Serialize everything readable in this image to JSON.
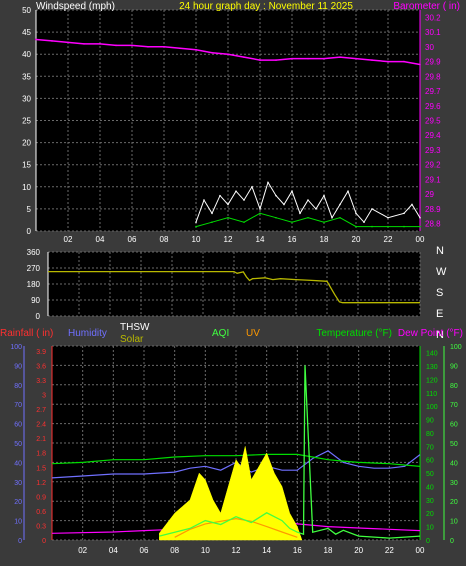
{
  "colors": {
    "bg": "#3a3a3a",
    "plot": "#000000",
    "grid": "#6a6a6a",
    "white": "#ffffff",
    "yellow": "#ffff00",
    "magenta": "#ff00ff",
    "olive": "#b8b800",
    "red": "#ff3030",
    "blue": "#7070ff",
    "green": "#00dd00",
    "orange": "#ff9900",
    "aqi": "#40ff40",
    "gray": "#b0b0b0"
  },
  "chart_data": [
    {
      "type": "line",
      "title": "24 hour graph day : November 11 2025",
      "left_axis_label": "Windspeed (mph)",
      "right_axis_label": "Barometer ( in)",
      "x_ticks": [
        "02",
        "04",
        "06",
        "08",
        "10",
        "12",
        "14",
        "16",
        "18",
        "20",
        "22",
        "00"
      ],
      "x_range": [
        0,
        24
      ],
      "left_ticks": [
        "0",
        "5",
        "10",
        "15",
        "20",
        "25",
        "30",
        "35",
        "40",
        "45",
        "50"
      ],
      "left_range": [
        0,
        50
      ],
      "right_ticks": [
        "28.8",
        "28.9",
        "29",
        "29.1",
        "29.2",
        "29.3",
        "29.4",
        "29.5",
        "29.6",
        "29.7",
        "29.8",
        "29.9",
        "30",
        "30.1",
        "30.2"
      ],
      "right_range": [
        28.75,
        30.25
      ],
      "series": [
        {
          "key": "barometer",
          "color_key": "magenta",
          "axis": "right",
          "x": [
            0,
            1,
            2,
            3,
            4,
            5,
            6,
            7,
            8,
            9,
            10,
            11,
            12,
            13,
            14,
            15,
            16,
            17,
            18,
            19,
            20,
            21,
            22,
            23,
            24
          ],
          "values": [
            30.05,
            30.04,
            30.03,
            30.02,
            30.02,
            30.01,
            30.01,
            30.0,
            30.0,
            29.99,
            29.98,
            29.96,
            29.95,
            29.93,
            29.91,
            29.91,
            29.92,
            29.92,
            29.92,
            29.93,
            29.92,
            29.91,
            29.9,
            29.9,
            29.88
          ]
        },
        {
          "key": "wind_gust",
          "color_key": "white",
          "axis": "left",
          "x": [
            10,
            10.5,
            11,
            11.5,
            12,
            12.5,
            13,
            13.5,
            14,
            14.5,
            15,
            15.5,
            16,
            16.5,
            17,
            17.5,
            18,
            18.5,
            19,
            19.5,
            20,
            20.5,
            21,
            22,
            23,
            23.5,
            24
          ],
          "values": [
            2,
            7,
            4,
            8,
            6,
            9,
            7,
            10,
            5,
            11,
            8,
            6,
            9,
            4,
            7,
            5,
            8,
            3,
            6,
            9,
            4,
            2,
            5,
            3,
            4,
            6,
            3
          ]
        },
        {
          "key": "wind_avg",
          "color_key": "green",
          "axis": "left",
          "x": [
            10,
            11,
            12,
            13,
            14,
            15,
            16,
            17,
            18,
            19,
            20,
            21,
            22,
            23,
            24
          ],
          "values": [
            1,
            2,
            3,
            2,
            4,
            3,
            2,
            3,
            2,
            3,
            1,
            1,
            1,
            1,
            1
          ]
        }
      ]
    },
    {
      "type": "line",
      "left_ticks": [
        "0",
        "90",
        "180",
        "270",
        "360"
      ],
      "left_range": [
        0,
        360
      ],
      "right_ticks": [
        "N",
        "W",
        "S",
        "E",
        "N"
      ],
      "x_range": [
        0,
        24
      ],
      "series": [
        {
          "key": "wind_direction",
          "color_key": "olive",
          "x": [
            0,
            12,
            12.2,
            12.6,
            12.8,
            13,
            13.2,
            14,
            14.5,
            15,
            16,
            17,
            18,
            18.5,
            18.8,
            19,
            20,
            22,
            24
          ],
          "values": [
            250,
            250,
            240,
            248,
            220,
            200,
            210,
            215,
            205,
            210,
            205,
            200,
            195,
            120,
            80,
            75,
            75,
            75,
            75
          ]
        }
      ]
    },
    {
      "type": "line",
      "legend": [
        {
          "label": "Rainfall ( in)",
          "color_key": "red"
        },
        {
          "label": "Humidity",
          "color_key": "blue"
        },
        {
          "label": "THSW",
          "color_key": "white"
        },
        {
          "label": "Solar",
          "color_key": "olive"
        },
        {
          "label": "AQI",
          "color_key": "aqi"
        },
        {
          "label": "UV",
          "color_key": "orange"
        },
        {
          "label": "Temperature (°F)",
          "color_key": "green"
        },
        {
          "label": "Dew Point (°F)",
          "color_key": "magenta"
        }
      ],
      "x_ticks": [
        "02",
        "04",
        "06",
        "08",
        "10",
        "12",
        "14",
        "16",
        "18",
        "20",
        "22",
        "00"
      ],
      "x_range": [
        0,
        24
      ],
      "humidity_ticks": [
        "0",
        "10",
        "20",
        "30",
        "40",
        "50",
        "60",
        "70",
        "80",
        "90",
        "100"
      ],
      "humidity_range": [
        0,
        100
      ],
      "rain_ticks": [
        "0",
        "0.3",
        "0.6",
        "0.9",
        "1.2",
        "1.5",
        "1.8",
        "2.1",
        "2.4",
        "2.7",
        "3",
        "3.3",
        "3.6",
        "3.9"
      ],
      "rain_range": [
        0,
        4.0
      ],
      "temp_ticks": [
        "0",
        "10",
        "20",
        "30",
        "40",
        "50",
        "60",
        "70",
        "80",
        "90",
        "100",
        "110",
        "120",
        "130",
        "140"
      ],
      "temp_range": [
        0,
        145
      ],
      "aqi_ticks": [
        "0",
        "10",
        "20",
        "30",
        "40",
        "50",
        "60",
        "70",
        "80",
        "90",
        "100"
      ],
      "aqi_range": [
        0,
        100
      ],
      "series": [
        {
          "key": "humidity",
          "color_key": "blue",
          "axis": "humidity",
          "x": [
            0,
            2,
            4,
            6,
            8,
            9,
            10,
            11,
            12,
            13,
            14,
            15,
            16,
            17,
            18,
            19,
            20,
            21,
            22,
            23,
            24
          ],
          "values": [
            32,
            33,
            34,
            34,
            35,
            37,
            38,
            36,
            40,
            35,
            38,
            36,
            36,
            42,
            46,
            40,
            38,
            37,
            37,
            38,
            44
          ]
        },
        {
          "key": "temperature",
          "color_key": "green",
          "axis": "temp",
          "x": [
            0,
            2,
            4,
            6,
            8,
            10,
            12,
            14,
            16,
            17,
            18,
            19,
            20,
            22,
            24
          ],
          "values": [
            57,
            58,
            60,
            60,
            62,
            63,
            63,
            64,
            64,
            62,
            60,
            59,
            58,
            57,
            55
          ]
        },
        {
          "key": "dew_point",
          "color_key": "magenta",
          "axis": "temp",
          "x": [
            0,
            4,
            6,
            8,
            9,
            10,
            12,
            14,
            16,
            18,
            20,
            22,
            24
          ],
          "values": [
            5,
            6,
            7,
            8,
            12,
            16,
            20,
            18,
            12,
            10,
            9,
            8,
            7
          ]
        },
        {
          "key": "solar",
          "color_key": "yellow",
          "axis": "temp",
          "x": [
            7,
            8,
            8.5,
            9,
            9.3,
            9.6,
            10,
            10.5,
            11,
            11.5,
            12,
            12.3,
            12.6,
            13,
            13.5,
            14,
            14.5,
            15,
            15.5,
            16,
            16.3
          ],
          "values": [
            5,
            20,
            25,
            30,
            40,
            50,
            45,
            30,
            20,
            40,
            60,
            55,
            70,
            45,
            55,
            65,
            50,
            40,
            20,
            10,
            0
          ]
        },
        {
          "key": "uv",
          "color_key": "orange",
          "axis": "temp",
          "x": [
            8,
            9,
            10,
            11,
            12,
            13,
            14,
            15,
            16
          ],
          "values": [
            2,
            8,
            12,
            14,
            16,
            14,
            10,
            6,
            2
          ]
        },
        {
          "key": "aqi",
          "color_key": "aqi",
          "axis": "aqi",
          "x": [
            7,
            8,
            9,
            10,
            11,
            12,
            13,
            14,
            15,
            15.5,
            16,
            16.4,
            16.5,
            17,
            18,
            18.5,
            19,
            20,
            22,
            24
          ],
          "values": [
            2,
            4,
            6,
            10,
            8,
            12,
            9,
            14,
            10,
            6,
            4,
            3,
            90,
            4,
            6,
            3,
            5,
            2,
            1,
            2
          ]
        }
      ]
    }
  ]
}
